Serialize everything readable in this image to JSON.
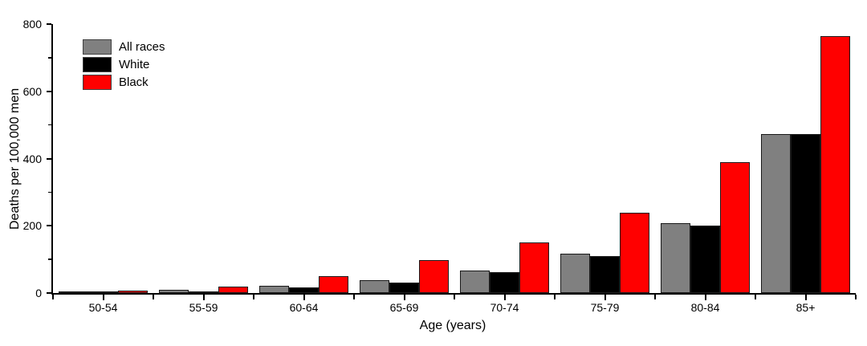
{
  "figure": {
    "background": "#ffffff",
    "axis_color": "#000000"
  },
  "chart_data": {
    "type": "bar",
    "title": "",
    "xlabel": "Age (years)",
    "ylabel": "Deaths per 100,000 men",
    "categories": [
      "50-54",
      "55-59",
      "60-64",
      "65-69",
      "70-74",
      "75-79",
      "80-84",
      "85+"
    ],
    "series": [
      {
        "name": "All races",
        "color": "#808080",
        "values": [
          2,
          9,
          21,
          39,
          68,
          116,
          208,
          474
        ]
      },
      {
        "name": "White",
        "color": "#000000",
        "values": [
          1.5,
          6,
          16,
          32,
          62,
          110,
          201,
          473
        ]
      },
      {
        "name": "Black",
        "color": "#ff0000",
        "values": [
          8,
          20,
          50,
          97,
          150,
          239,
          389,
          765
        ]
      }
    ],
    "ylim": [
      0,
      800
    ],
    "y_major_ticks": [
      0,
      200,
      400,
      600,
      800
    ],
    "y_minor_ticks": [
      100,
      300,
      500,
      700
    ],
    "grid": false,
    "legend_position": "top-left",
    "bar_border_color": "#1a1a1a"
  }
}
